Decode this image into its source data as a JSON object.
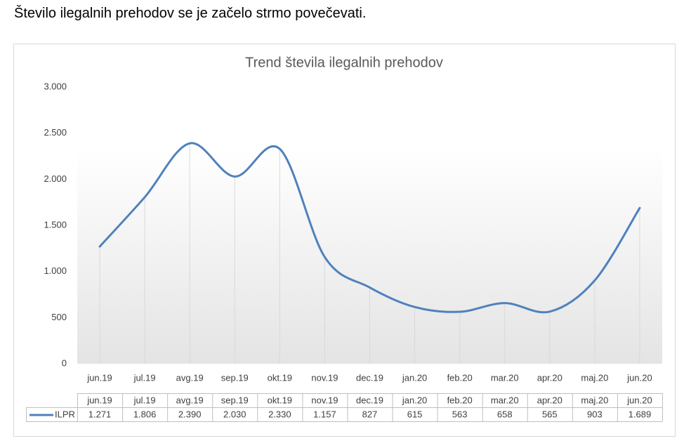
{
  "heading": "Število ilegalnih prehodov se je začelo strmo povečevati.",
  "chart_data": {
    "type": "line",
    "title": "Trend števila ilegalnih prehodov",
    "categories": [
      "jun.19",
      "jul.19",
      "avg.19",
      "sep.19",
      "okt.19",
      "nov.19",
      "dec.19",
      "jan.20",
      "feb.20",
      "mar.20",
      "apr.20",
      "maj.20",
      "jun.20"
    ],
    "series": [
      {
        "name": "ILPR",
        "color": "#4f81bd",
        "values": [
          1271,
          1806,
          2390,
          2030,
          2330,
          1157,
          827,
          615,
          563,
          658,
          565,
          903,
          1689
        ],
        "value_labels": [
          "1.271",
          "1.806",
          "2.390",
          "2.030",
          "2.330",
          "1.157",
          "827",
          "615",
          "563",
          "658",
          "565",
          "903",
          "1.689"
        ]
      }
    ],
    "ylim": [
      0,
      3000
    ],
    "yticks": [
      {
        "value": 0,
        "label": "0"
      },
      {
        "value": 500,
        "label": "500"
      },
      {
        "value": 1000,
        "label": "1.000"
      },
      {
        "value": 1500,
        "label": "1.500"
      },
      {
        "value": 2000,
        "label": "2.000"
      },
      {
        "value": 2500,
        "label": "2.500"
      },
      {
        "value": 3000,
        "label": "3.000"
      }
    ],
    "smooth": true,
    "drop_lines": true,
    "data_table": true
  }
}
